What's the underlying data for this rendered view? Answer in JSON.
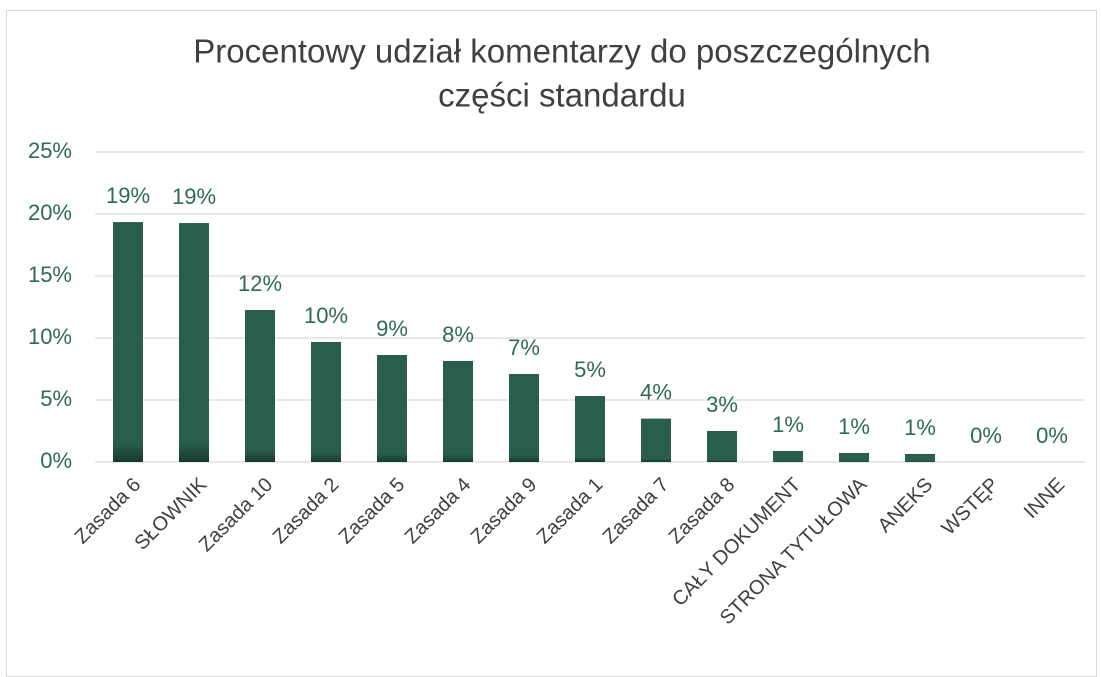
{
  "chart_data": {
    "type": "bar",
    "title": [
      "Procentowy udział komentarzy do poszczególnych",
      "części standardu"
    ],
    "categories": [
      "Zasada  6",
      "SŁOWNIK",
      "Zasada  10",
      "Zasada  2",
      "Zasada  5",
      "Zasada  4",
      "Zasada  9",
      "Zasada  1",
      "Zasada  7",
      "Zasada  8",
      "CAŁY DOKUMENT",
      "STRONA TYTUŁOWA",
      "ANEKS",
      "WSTĘP",
      "INNE"
    ],
    "values": [
      19.35,
      19.27,
      12.26,
      9.68,
      8.63,
      8.15,
      7.1,
      5.32,
      3.5,
      2.5,
      0.89,
      0.73,
      0.65,
      0,
      0
    ],
    "value_labels": [
      "19%",
      "19%",
      "12%",
      "10%",
      "9%",
      "8%",
      "7%",
      "5%",
      "4%",
      "3%",
      "1%",
      "1%",
      "1%",
      "0%",
      "0%"
    ],
    "color": "#2a5e4c",
    "ylim": [
      0,
      25
    ],
    "yticks": [
      {
        "value": 0,
        "label": "0%"
      },
      {
        "value": 5,
        "label": "5%"
      },
      {
        "value": 10,
        "label": "10%"
      },
      {
        "value": 15,
        "label": "15%"
      },
      {
        "value": 20,
        "label": "20%"
      },
      {
        "value": 25,
        "label": "25%"
      }
    ],
    "grid": true
  }
}
